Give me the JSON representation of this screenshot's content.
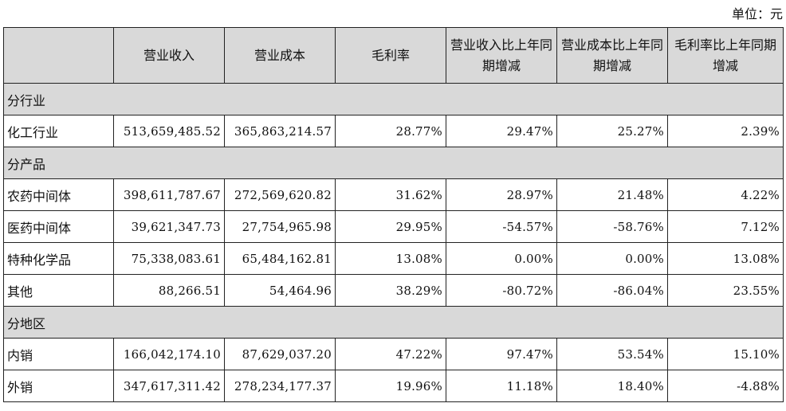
{
  "unit_label": "单位：元",
  "headers": [
    "",
    "营业收入",
    "营业成本",
    "毛利率",
    "营业收入比上年同期增减",
    "营业成本比上年同期增减",
    "毛利率比上年同期增减"
  ],
  "sections": [
    {
      "title": "分行业",
      "rows": [
        [
          "化工行业",
          "513,659,485.52",
          "365,863,214.57",
          "28.77%",
          "29.47%",
          "25.27%",
          "2.39%"
        ]
      ]
    },
    {
      "title": "分产品",
      "rows": [
        [
          "农药中间体",
          "398,611,787.67",
          "272,569,620.82",
          "31.62%",
          "28.97%",
          "21.48%",
          "4.22%"
        ],
        [
          "医药中间体",
          "39,621,347.73",
          "27,754,965.98",
          "29.95%",
          "-54.57%",
          "-58.76%",
          "7.12%"
        ],
        [
          "特种化学品",
          "75,338,083.61",
          "65,484,162.81",
          "13.08%",
          "0.00%",
          "0.00%",
          "13.08%"
        ],
        [
          "其他",
          "88,266.51",
          "54,464.96",
          "38.29%",
          "-80.72%",
          "-86.04%",
          "23.55%"
        ]
      ]
    },
    {
      "title": "分地区",
      "rows": [
        [
          "内销",
          "166,042,174.10",
          "87,629,037.20",
          "47.22%",
          "97.47%",
          "53.54%",
          "15.10%"
        ],
        [
          "外销",
          "347,617,311.42",
          "278,234,177.37",
          "19.96%",
          "11.18%",
          "18.40%",
          "-4.88%"
        ]
      ]
    }
  ]
}
